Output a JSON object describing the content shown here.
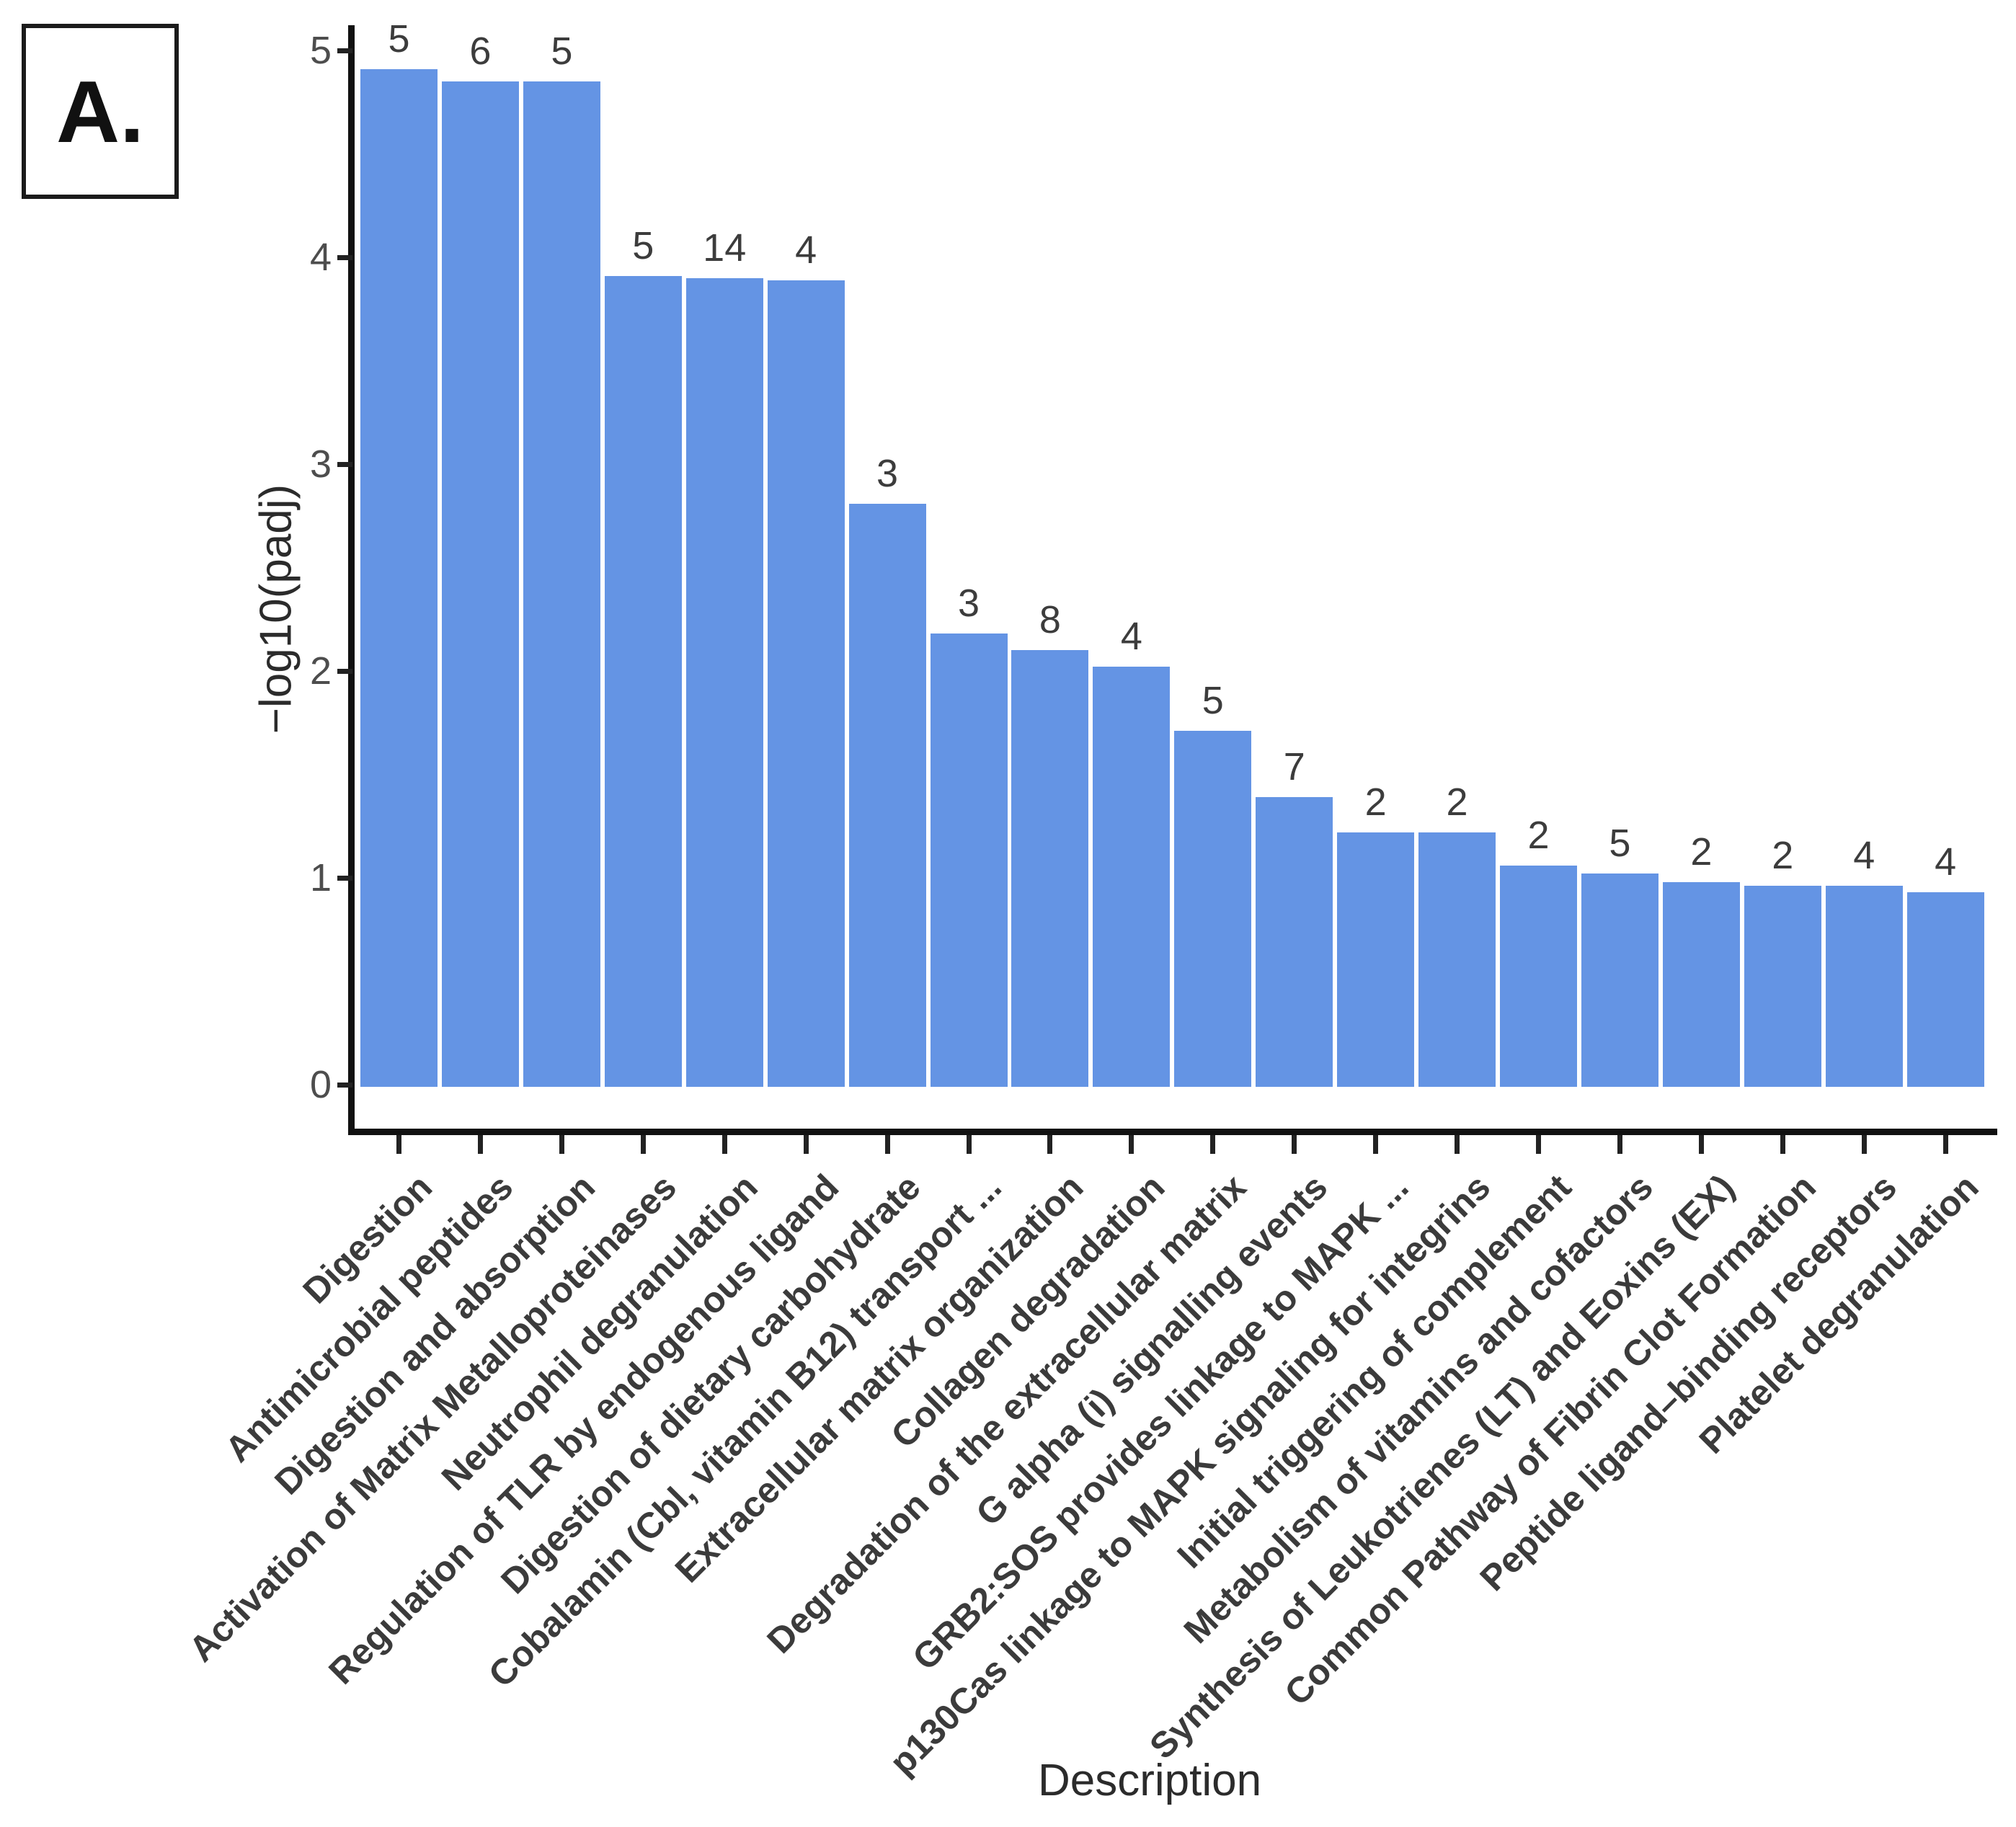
{
  "panel_label": "A.",
  "chart_data": {
    "type": "bar",
    "title": "",
    "xlabel": "Description",
    "ylabel": "−log10(padj)",
    "ylim": [
      0,
      5
    ],
    "yticks": [
      0,
      1,
      2,
      3,
      4,
      5
    ],
    "grid": false,
    "legend": "none",
    "bar_color": "#6494e4",
    "axis_color": "#111111",
    "tick_label_color": "#4d4d4d",
    "category_label_color": "#3b3b3b",
    "categories": [
      "Digestion",
      "Antimicrobial peptides",
      "Digestion and absorption",
      "Activation of Matrix Metalloproteinases",
      "Neutrophil degranulation",
      "Regulation of TLR by endogenous ligand",
      "Digestion of dietary carbohydrate",
      "Cobalamin (Cbl, vitamin B12) transport ...",
      "Extracellular matrix organization",
      "Collagen degradation",
      "Degradation of the extracellular matrix",
      "G alpha (i) signalling events",
      "GRB2:SOS provides linkage to MAPK ...",
      "p130Cas linkage to MAPK signaling for integrins",
      "Initial triggering of complement",
      "Metabolism of vitamins and cofactors",
      "Synthesis of Leukotrienes (LT) and Eoxins (EX)",
      "Common Pathway of Fibrin Clot Formation",
      "Peptide ligand–binding receptors",
      "Platelet degranulation"
    ],
    "values": [
      4.91,
      4.85,
      4.85,
      3.91,
      3.9,
      3.89,
      2.81,
      2.18,
      2.1,
      2.02,
      1.71,
      1.39,
      1.22,
      1.22,
      1.06,
      1.02,
      0.98,
      0.96,
      0.96,
      0.93
    ],
    "bar_count_labels": [
      "5",
      "6",
      "5",
      "5",
      "14",
      "4",
      "3",
      "3",
      "8",
      "4",
      "5",
      "7",
      "2",
      "2",
      "2",
      "5",
      "2",
      "2",
      "4",
      "4"
    ]
  }
}
